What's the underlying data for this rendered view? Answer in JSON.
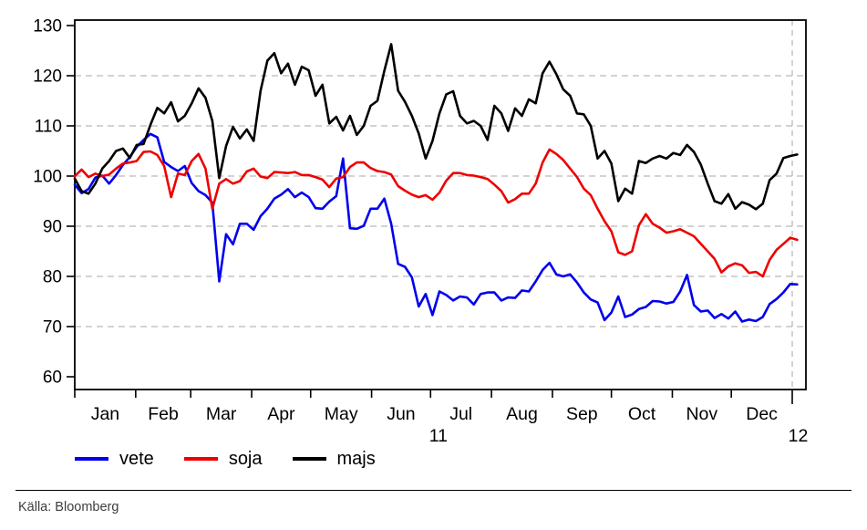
{
  "chart_data": {
    "type": "line",
    "title": "",
    "xlabel": "",
    "ylabel": "",
    "grid": true,
    "legend_position": "bottom-left",
    "x_axis": {
      "months": [
        "Jan",
        "Feb",
        "Mar",
        "Apr",
        "May",
        "Jun",
        "Jul",
        "Aug",
        "Sep",
        "Oct",
        "Nov",
        "Dec"
      ],
      "days_per_month": [
        31,
        28,
        31,
        30,
        31,
        30,
        31,
        31,
        30,
        31,
        30,
        31
      ],
      "year_left": "11",
      "year_right": "12",
      "year_boundary_day": 365,
      "sample_interval_days": 3.5
    },
    "y_axis": {
      "ticks": [
        60,
        70,
        80,
        90,
        100,
        110,
        120,
        130
      ],
      "gridline_ticks": [
        70,
        80,
        90,
        100,
        110,
        120
      ],
      "ylim": [
        57.5,
        131
      ]
    },
    "series": [
      {
        "name": "vete",
        "color": "#0000ee",
        "values": [
          98.3,
          96.6,
          97.4,
          99.7,
          100.1,
          98.5,
          100.2,
          102.2,
          103.8,
          105.8,
          107.2,
          108.4,
          107.7,
          102.8,
          101.8,
          101.0,
          102.0,
          98.6,
          97.0,
          96.2,
          94.7,
          79.0,
          88.4,
          86.4,
          90.5,
          90.5,
          89.3,
          92.0,
          93.5,
          95.5,
          96.3,
          97.4,
          95.8,
          96.7,
          95.8,
          93.6,
          93.5,
          94.9,
          96.0,
          103.5,
          89.6,
          89.5,
          90.1,
          93.5,
          93.5,
          95.5,
          90.5,
          82.5,
          81.9,
          79.8,
          74.0,
          76.5,
          72.3,
          77.0,
          76.3,
          75.2,
          76.0,
          75.8,
          74.4,
          76.5,
          76.8,
          76.8,
          75.2,
          75.8,
          75.7,
          77.2,
          77.0,
          79.0,
          81.3,
          82.7,
          80.4,
          80.0,
          80.4,
          78.8,
          76.8,
          75.4,
          74.8,
          71.3,
          72.8,
          76.0,
          71.9,
          72.4,
          73.5,
          73.9,
          75.1,
          75.0,
          74.6,
          74.9,
          77.0,
          80.3,
          74.3,
          73.0,
          73.2,
          71.7,
          72.5,
          71.6,
          73.0,
          71.0,
          71.4,
          71.1,
          71.9,
          74.5,
          75.5,
          76.8,
          78.5,
          78.4
        ]
      },
      {
        "name": "soja",
        "color": "#ee0000",
        "values": [
          100.0,
          101.3,
          99.8,
          100.5,
          100.0,
          100.3,
          101.5,
          102.5,
          102.7,
          103.0,
          104.8,
          104.9,
          104.2,
          102.0,
          95.8,
          100.5,
          100.2,
          103.0,
          104.4,
          101.5,
          93.5,
          98.5,
          99.4,
          98.5,
          99.0,
          100.9,
          101.5,
          99.9,
          99.6,
          100.8,
          100.7,
          100.6,
          100.8,
          100.2,
          100.2,
          99.8,
          99.3,
          97.8,
          99.5,
          99.8,
          101.8,
          102.7,
          102.7,
          101.6,
          101.0,
          100.8,
          100.3,
          98.0,
          97.1,
          96.3,
          95.8,
          96.2,
          95.3,
          96.7,
          99.1,
          100.6,
          100.6,
          100.2,
          100.1,
          99.8,
          99.4,
          98.3,
          97.0,
          94.7,
          95.4,
          96.5,
          96.5,
          98.5,
          102.7,
          105.3,
          104.4,
          103.2,
          101.5,
          99.8,
          97.5,
          96.2,
          93.5,
          91.0,
          89.0,
          84.8,
          84.3,
          85.0,
          90.2,
          92.4,
          90.5,
          89.7,
          88.7,
          89.0,
          89.4,
          88.7,
          88.0,
          86.5,
          85.0,
          83.5,
          80.8,
          82.0,
          82.6,
          82.2,
          80.7,
          80.9,
          80.0,
          83.3,
          85.3,
          86.5,
          87.7,
          87.3
        ]
      },
      {
        "name": "majs",
        "color": "#000000",
        "values": [
          99.5,
          97.0,
          96.5,
          98.5,
          101.5,
          103.0,
          105.0,
          105.5,
          103.6,
          106.2,
          106.4,
          110.2,
          113.6,
          112.5,
          114.7,
          110.9,
          112.0,
          114.5,
          117.5,
          115.6,
          111.0,
          99.6,
          106.0,
          109.8,
          107.5,
          109.3,
          107.0,
          117.0,
          123.0,
          124.5,
          120.5,
          122.4,
          118.2,
          121.8,
          121.1,
          116.0,
          118.2,
          110.5,
          111.8,
          109.1,
          112.0,
          108.2,
          110.0,
          114.0,
          115.0,
          121.0,
          126.3,
          117.0,
          114.8,
          112.0,
          108.5,
          103.5,
          107.0,
          112.5,
          116.3,
          116.9,
          112.0,
          110.5,
          111.0,
          110.0,
          107.2,
          114.0,
          112.5,
          109.0,
          113.5,
          112.0,
          115.3,
          114.5,
          120.5,
          122.8,
          120.3,
          117.3,
          116.0,
          112.5,
          112.3,
          110.0,
          103.5,
          105.0,
          102.5,
          95.0,
          97.5,
          96.5,
          103.0,
          102.6,
          103.5,
          104.0,
          103.5,
          104.6,
          104.2,
          106.2,
          104.8,
          102.3,
          98.5,
          95.0,
          94.5,
          96.4,
          93.5,
          94.8,
          94.3,
          93.4,
          94.5,
          99.2,
          100.5,
          103.6,
          104.0,
          104.3
        ]
      }
    ]
  },
  "footer": {
    "source_label": "Källa: Bloomberg"
  }
}
